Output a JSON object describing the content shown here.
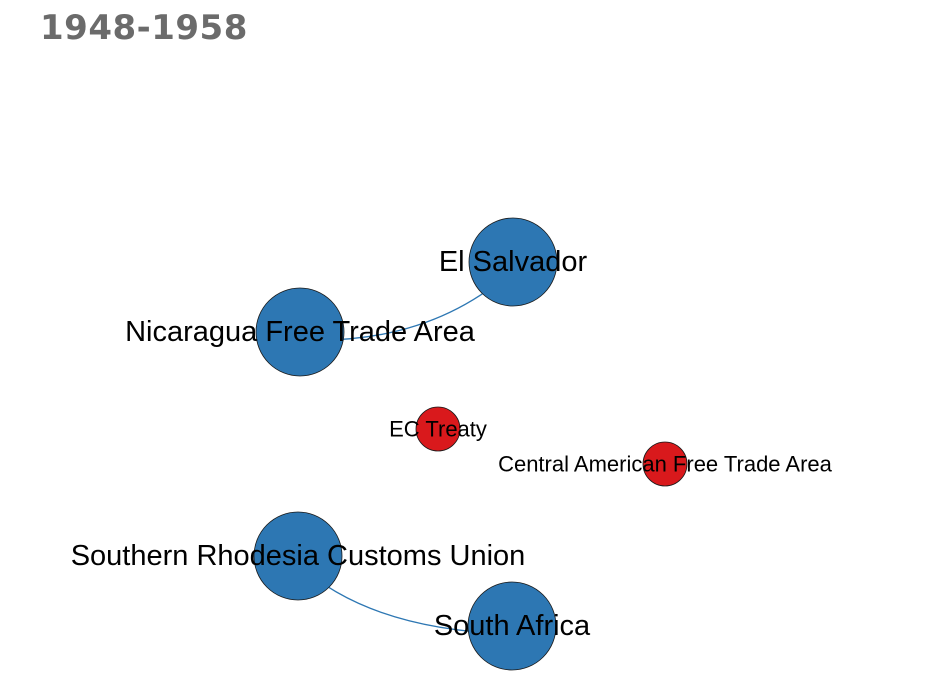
{
  "title": "1948-1958",
  "colors": {
    "blue": "#2d77b3",
    "red": "#d9191c",
    "edge": "#2d77b3",
    "title": "#6b6b6b"
  },
  "nodes": [
    {
      "id": "el-salvador",
      "label": "El Salvador",
      "kind": "country",
      "color": "blue"
    },
    {
      "id": "nicaragua",
      "label": "Nicaragua Free Trade Area",
      "kind": "agreement-large",
      "color": "blue"
    },
    {
      "id": "ec-treaty",
      "label": "EC Treaty",
      "kind": "agreement",
      "color": "red"
    },
    {
      "id": "cafta",
      "label": "Central American Free Trade Area",
      "kind": "agreement",
      "color": "red"
    },
    {
      "id": "srcu",
      "label": "Southern Rhodesia Customs Union",
      "kind": "agreement-large",
      "color": "blue"
    },
    {
      "id": "south-africa",
      "label": "South Africa",
      "kind": "country",
      "color": "blue"
    }
  ],
  "edges": [
    {
      "source": "nicaragua",
      "target": "el-salvador"
    },
    {
      "source": "srcu",
      "target": "south-africa"
    }
  ]
}
